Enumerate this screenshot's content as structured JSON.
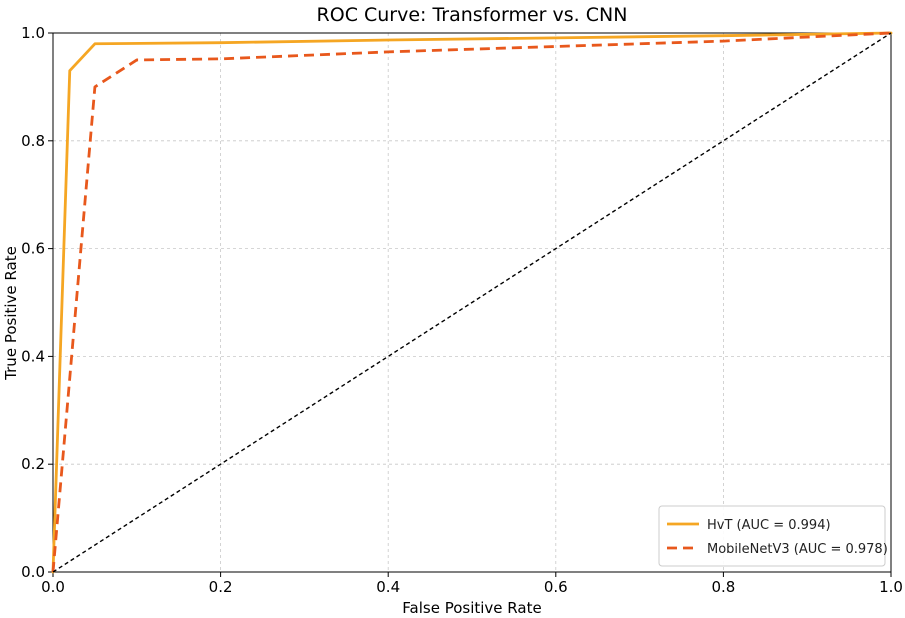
{
  "chart_data": {
    "type": "line",
    "title": "ROC Curve: Transformer vs. CNN",
    "xlabel": "False Positive Rate",
    "ylabel": "True Positive Rate",
    "xlim": [
      0.0,
      1.0
    ],
    "ylim": [
      0.0,
      1.0
    ],
    "xticks": [
      0.0,
      0.2,
      0.4,
      0.6,
      0.8,
      1.0
    ],
    "yticks": [
      0.0,
      0.2,
      0.4,
      0.6,
      0.8,
      1.0
    ],
    "xtick_labels": [
      "0.0",
      "0.2",
      "0.4",
      "0.6",
      "0.8",
      "1.0"
    ],
    "ytick_labels": [
      "0.0",
      "0.2",
      "0.4",
      "0.6",
      "0.8",
      "1.0"
    ],
    "grid": true,
    "legend_position": "bottom-right",
    "series": [
      {
        "name": "HvT (AUC = 0.994)",
        "color": "#f5a623",
        "style": "solid",
        "x": [
          0.0,
          0.02,
          0.05,
          0.2,
          0.4,
          0.6,
          0.8,
          1.0
        ],
        "y": [
          0.0,
          0.93,
          0.98,
          0.982,
          0.987,
          0.991,
          0.995,
          1.0
        ]
      },
      {
        "name": "MobileNetV3 (AUC = 0.978)",
        "color": "#e8581c",
        "style": "dashed",
        "x": [
          0.0,
          0.05,
          0.1,
          0.2,
          0.4,
          0.6,
          0.8,
          1.0
        ],
        "y": [
          0.0,
          0.9,
          0.95,
          0.952,
          0.965,
          0.975,
          0.985,
          1.0
        ]
      },
      {
        "name": "Chance",
        "color": "#000000",
        "style": "dotted",
        "show_in_legend": false,
        "x": [
          0.0,
          1.0
        ],
        "y": [
          0.0,
          1.0
        ]
      }
    ]
  }
}
